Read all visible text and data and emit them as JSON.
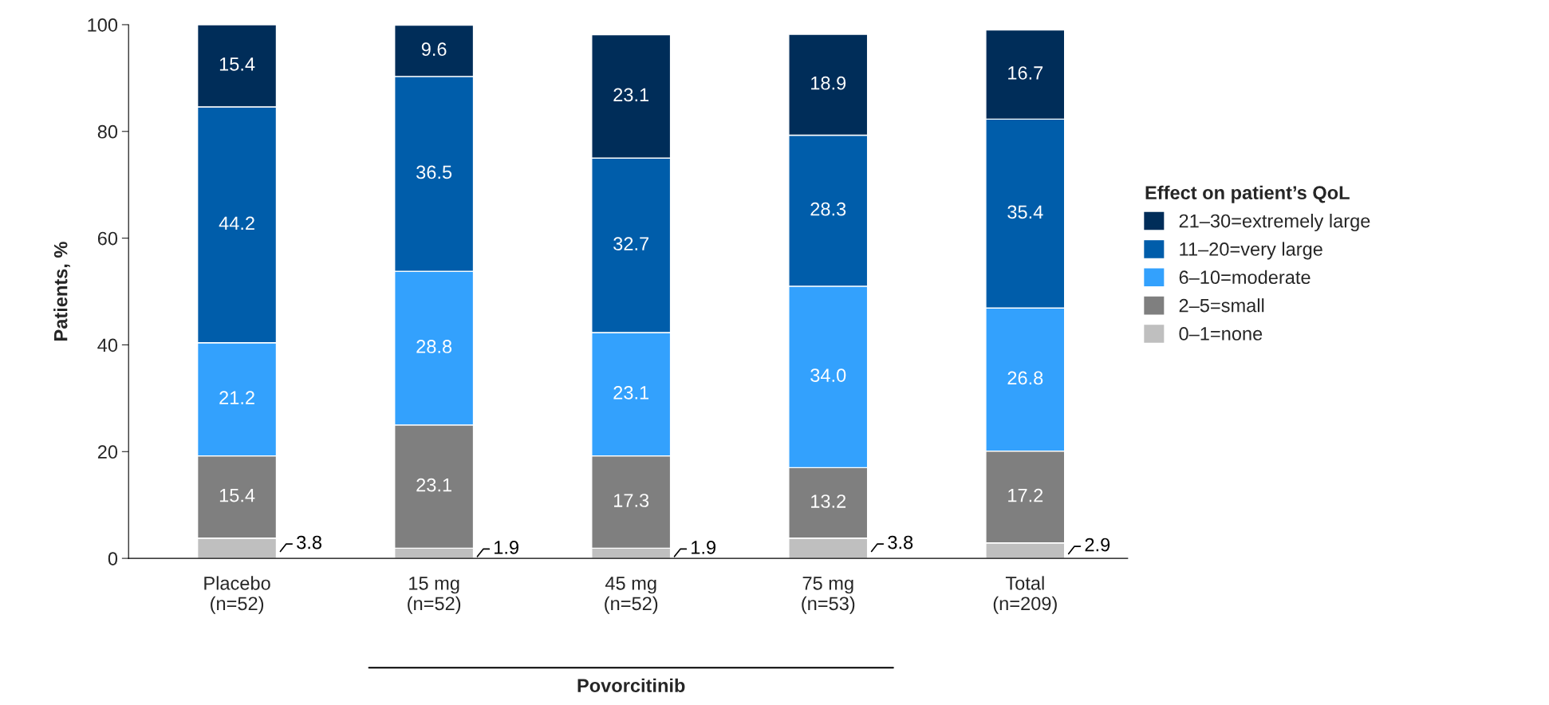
{
  "chart_data": {
    "type": "bar",
    "stacked": true,
    "ylabel": "Patients, %",
    "legend_title": "Effect on patient’s QoL",
    "legend": "right",
    "grid": false,
    "categories": [
      "Placebo\n(n=52)",
      "15 mg\n(n=52)",
      "45 mg\n(n=52)",
      "75 mg\n(n=53)",
      "Total\n(n=209)"
    ],
    "ylim": [
      0,
      100
    ],
    "yticks": [
      0,
      20,
      40,
      60,
      80,
      100
    ],
    "series": [
      {
        "name": "0–1=none",
        "color": "#bfbfbf",
        "values": [
          3.8,
          1.9,
          1.9,
          3.8,
          2.9
        ],
        "value_labels": [
          "3.8",
          "1.9",
          "1.9",
          "3.8",
          "2.9"
        ]
      },
      {
        "name": "2–5=small",
        "color": "#7f7f7f",
        "values": [
          15.4,
          23.1,
          17.3,
          13.2,
          17.2
        ],
        "value_labels": [
          "15.4",
          "23.1",
          "17.3",
          "13.2",
          "17.2"
        ]
      },
      {
        "name": "6–10=moderate",
        "color": "#33a1fd",
        "values": [
          21.2,
          28.8,
          23.1,
          34.0,
          26.8
        ],
        "value_labels": [
          "21.2",
          "28.8",
          "23.1",
          "34.0",
          "26.8"
        ]
      },
      {
        "name": "11–20=very large",
        "color": "#005daa",
        "values": [
          44.2,
          36.5,
          32.7,
          28.3,
          35.4
        ],
        "value_labels": [
          "44.2",
          "36.5",
          "32.7",
          "28.3",
          "35.4"
        ]
      },
      {
        "name": "21–30=extremely large",
        "color": "#002d59",
        "values": [
          15.4,
          9.6,
          23.1,
          18.9,
          16.7
        ],
        "value_labels": [
          "15.4",
          "9.6",
          "23.1",
          "18.9",
          "16.7"
        ]
      }
    ],
    "annotations": [
      "Povorcitinib"
    ]
  }
}
